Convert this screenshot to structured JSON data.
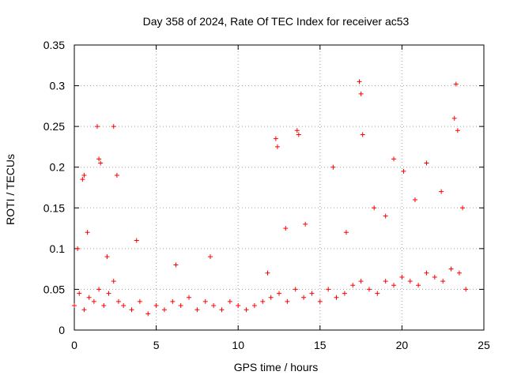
{
  "chart_data": {
    "type": "scatter",
    "title": "Day 358 of 2024, Rate Of TEC Index for receiver ac53",
    "xlabel": "GPS time / hours",
    "ylabel": "ROTI / TECUs",
    "xlim": [
      0,
      25
    ],
    "ylim": [
      0,
      0.35
    ],
    "x_ticks": [
      0,
      5,
      10,
      15,
      20,
      25
    ],
    "y_ticks": [
      0,
      0.05,
      0.1,
      0.15,
      0.2,
      0.25,
      0.3,
      0.35
    ],
    "x_tick_labels": [
      "0",
      "5",
      "10",
      "15",
      "20",
      "25"
    ],
    "y_tick_labels": [
      "0",
      "0.05",
      "0.1",
      "0.15",
      "0.2",
      "0.25",
      "0.3",
      "0.35"
    ],
    "grid": true,
    "marker": "+",
    "marker_color": "#ff0000",
    "series": [
      {
        "name": "ROTI",
        "x": [
          0.0,
          0.3,
          0.6,
          0.9,
          1.2,
          1.5,
          1.8,
          2.1,
          2.4,
          2.7,
          3.0,
          3.5,
          4.0,
          4.5,
          5.0,
          5.5,
          6.0,
          6.5,
          7.0,
          7.5,
          8.0,
          8.5,
          9.0,
          9.5,
          10.0,
          10.5,
          11.0,
          11.5,
          12.0,
          12.5,
          13.0,
          13.5,
          14.0,
          14.5,
          15.0,
          15.5,
          16.0,
          16.5,
          17.0,
          17.5,
          18.0,
          18.5,
          19.0,
          19.5,
          20.0,
          20.5,
          21.0,
          21.5,
          22.0,
          22.5,
          23.0,
          23.5,
          23.9,
          0.5,
          0.6,
          1.4,
          1.5,
          1.6,
          2.4,
          2.6,
          12.3,
          12.4,
          13.6,
          13.7,
          15.8,
          17.4,
          17.5,
          17.6,
          19.5,
          20.1,
          21.5,
          23.2,
          23.3,
          23.4,
          0.2,
          0.8,
          2.0,
          3.8,
          6.2,
          8.3,
          11.8,
          12.9,
          14.1,
          16.6,
          18.3,
          19.0,
          20.8,
          22.4,
          23.7
        ],
        "y": [
          0.03,
          0.045,
          0.025,
          0.04,
          0.035,
          0.05,
          0.03,
          0.045,
          0.06,
          0.035,
          0.03,
          0.025,
          0.035,
          0.02,
          0.03,
          0.025,
          0.035,
          0.03,
          0.04,
          0.025,
          0.035,
          0.03,
          0.025,
          0.035,
          0.03,
          0.025,
          0.03,
          0.035,
          0.04,
          0.045,
          0.035,
          0.05,
          0.04,
          0.045,
          0.035,
          0.05,
          0.04,
          0.045,
          0.055,
          0.06,
          0.05,
          0.045,
          0.06,
          0.055,
          0.065,
          0.06,
          0.055,
          0.07,
          0.065,
          0.06,
          0.075,
          0.07,
          0.05,
          0.185,
          0.19,
          0.25,
          0.21,
          0.205,
          0.25,
          0.19,
          0.235,
          0.225,
          0.245,
          0.24,
          0.2,
          0.305,
          0.29,
          0.24,
          0.21,
          0.195,
          0.205,
          0.26,
          0.302,
          0.245,
          0.1,
          0.12,
          0.09,
          0.11,
          0.08,
          0.09,
          0.07,
          0.125,
          0.13,
          0.12,
          0.15,
          0.14,
          0.16,
          0.17,
          0.15
        ]
      }
    ]
  }
}
